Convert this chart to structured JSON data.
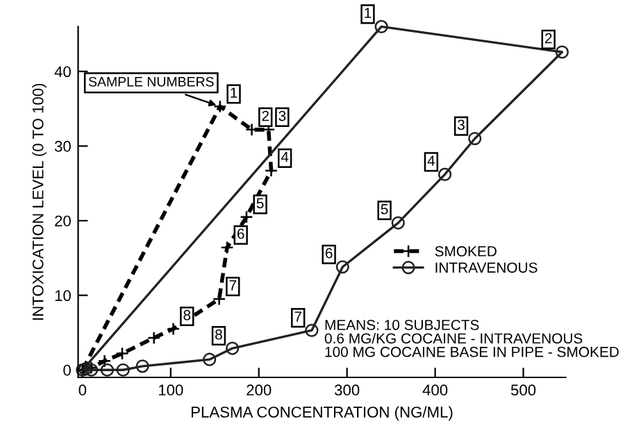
{
  "chart_data": {
    "type": "line",
    "xlabel": "PLASMA CONCENTRATION (NG/ML)",
    "ylabel": "INTOXICATION LEVEL (0 TO 100)",
    "series": [
      {
        "name": "SMOKED",
        "color": "#000000",
        "marker": "cross",
        "line_style": "dashed",
        "x": [
          0,
          156,
          192,
          211,
          214,
          186,
          164,
          155,
          103,
          81,
          45,
          25,
          10,
          2
        ],
        "values": [
          0,
          35.3,
          32.2,
          32.2,
          26.7,
          20.5,
          16.4,
          9.5,
          5.5,
          4.3,
          2.2,
          1.2,
          0.3,
          0
        ]
      },
      {
        "name": "INTRAVENOUS",
        "color": "#222222",
        "marker": "circle",
        "line_style": "solid",
        "x": [
          0,
          339,
          544,
          445,
          411,
          358,
          295,
          260,
          170,
          144,
          68,
          46,
          28,
          10,
          3
        ],
        "values": [
          0,
          46,
          42.6,
          31,
          26.2,
          19.7,
          13.8,
          5.3,
          2.9,
          1.4,
          0.5,
          0,
          0,
          0,
          0.1
        ]
      }
    ],
    "xlim": [
      -5,
      548
    ],
    "ylim": [
      -1,
      46
    ],
    "xticks": [
      0,
      100,
      200,
      300,
      400,
      500
    ],
    "yticks": [
      0,
      10,
      20,
      30,
      40
    ],
    "grid": false,
    "legend": "right",
    "annotations": [
      {
        "text": "SAMPLE NUMBERS",
        "x": 156,
        "y": 35.3
      },
      {
        "text": "1",
        "x": 156,
        "y": 35.3
      },
      {
        "text": "2",
        "x": 192,
        "y": 32.2
      },
      {
        "text": "3",
        "x": 211,
        "y": 32.2
      },
      {
        "text": "4",
        "x": 214,
        "y": 26.7
      },
      {
        "text": "5",
        "x": 186,
        "y": 20.5
      },
      {
        "text": "6",
        "x": 164,
        "y": 16.4
      },
      {
        "text": "7",
        "x": 155,
        "y": 9.5
      },
      {
        "text": "8",
        "x": 103,
        "y": 5.5
      },
      {
        "text": "1",
        "x": 339,
        "y": 46
      },
      {
        "text": "2",
        "x": 544,
        "y": 42.6
      },
      {
        "text": "3",
        "x": 445,
        "y": 31
      },
      {
        "text": "4",
        "x": 411,
        "y": 26.2
      },
      {
        "text": "5",
        "x": 358,
        "y": 19.7
      },
      {
        "text": "6",
        "x": 295,
        "y": 13.8
      },
      {
        "text": "7",
        "x": 260,
        "y": 5.3
      },
      {
        "text": "8",
        "x": 170,
        "y": 2.9
      },
      "MEANS: 10 SUBJECTS\n0.6 MG/KG COCAINE - INTRAVENOUS\n100 MG COCAINE BASE IN PIPE - SMOKED"
    ]
  }
}
